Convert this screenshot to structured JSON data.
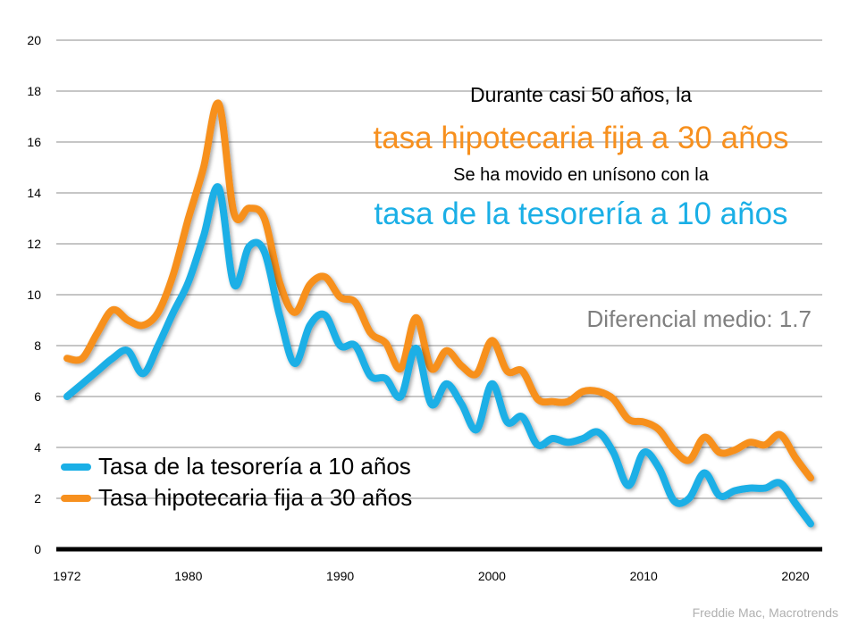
{
  "chart_data": {
    "type": "line",
    "x": [
      1972,
      1973,
      1974,
      1975,
      1976,
      1977,
      1978,
      1979,
      1980,
      1981,
      1982,
      1983,
      1984,
      1985,
      1986,
      1987,
      1988,
      1989,
      1990,
      1991,
      1992,
      1993,
      1994,
      1995,
      1996,
      1997,
      1998,
      1999,
      2000,
      2001,
      2002,
      2003,
      2004,
      2005,
      2006,
      2007,
      2008,
      2009,
      2010,
      2011,
      2012,
      2013,
      2014,
      2015,
      2016,
      2017,
      2018,
      2019,
      2020,
      2021
    ],
    "series": [
      {
        "name": "Tasa de la tesorería a 10 años",
        "color": "#1aafe6",
        "values": [
          6.0,
          6.5,
          7.0,
          7.5,
          7.8,
          6.9,
          8.0,
          9.3,
          10.5,
          12.3,
          14.2,
          10.4,
          11.9,
          11.7,
          9.2,
          7.3,
          8.8,
          9.2,
          8.0,
          8.0,
          6.8,
          6.7,
          6.0,
          7.9,
          5.7,
          6.5,
          5.7,
          4.7,
          6.5,
          5.0,
          5.2,
          4.1,
          4.35,
          4.2,
          4.35,
          4.6,
          3.8,
          2.5,
          3.8,
          3.2,
          1.9,
          2.0,
          3.0,
          2.1,
          2.3,
          2.4,
          2.4,
          2.6,
          1.8,
          1.0
        ]
      },
      {
        "name": "Tasa hipotecaria fija a 30 años",
        "color": "#f7901e",
        "values": [
          7.5,
          7.5,
          8.5,
          9.4,
          9.0,
          8.8,
          9.3,
          10.8,
          13.0,
          15.0,
          17.5,
          13.2,
          13.4,
          13.0,
          10.5,
          9.3,
          10.4,
          10.7,
          9.9,
          9.7,
          8.5,
          8.1,
          7.1,
          9.1,
          7.1,
          7.8,
          7.2,
          6.9,
          8.2,
          7.0,
          7.0,
          5.9,
          5.8,
          5.8,
          6.2,
          6.2,
          5.9,
          5.1,
          5.0,
          4.7,
          3.9,
          3.5,
          4.4,
          3.8,
          3.9,
          4.2,
          4.1,
          4.5,
          3.6,
          2.8
        ]
      }
    ],
    "xticks": [
      "1972",
      "1980",
      "1990",
      "2000",
      "2010",
      "2020"
    ],
    "yticks": [
      "0",
      "2",
      "4",
      "6",
      "8",
      "10",
      "12",
      "14",
      "16",
      "18",
      "20"
    ],
    "ylim": [
      0,
      20
    ],
    "grid": true,
    "legend": "bottom-left"
  },
  "annotations": {
    "line1": "Durante casi 50 años, la",
    "line2": "tasa hipotecaria fija a 30 años",
    "line3": "Se ha movido en unísono con la",
    "line4": "tasa de la tesorería a 10 años",
    "spread": "Diferencial medio: 1.7"
  },
  "source": "Freddie Mac, Macrotrends"
}
